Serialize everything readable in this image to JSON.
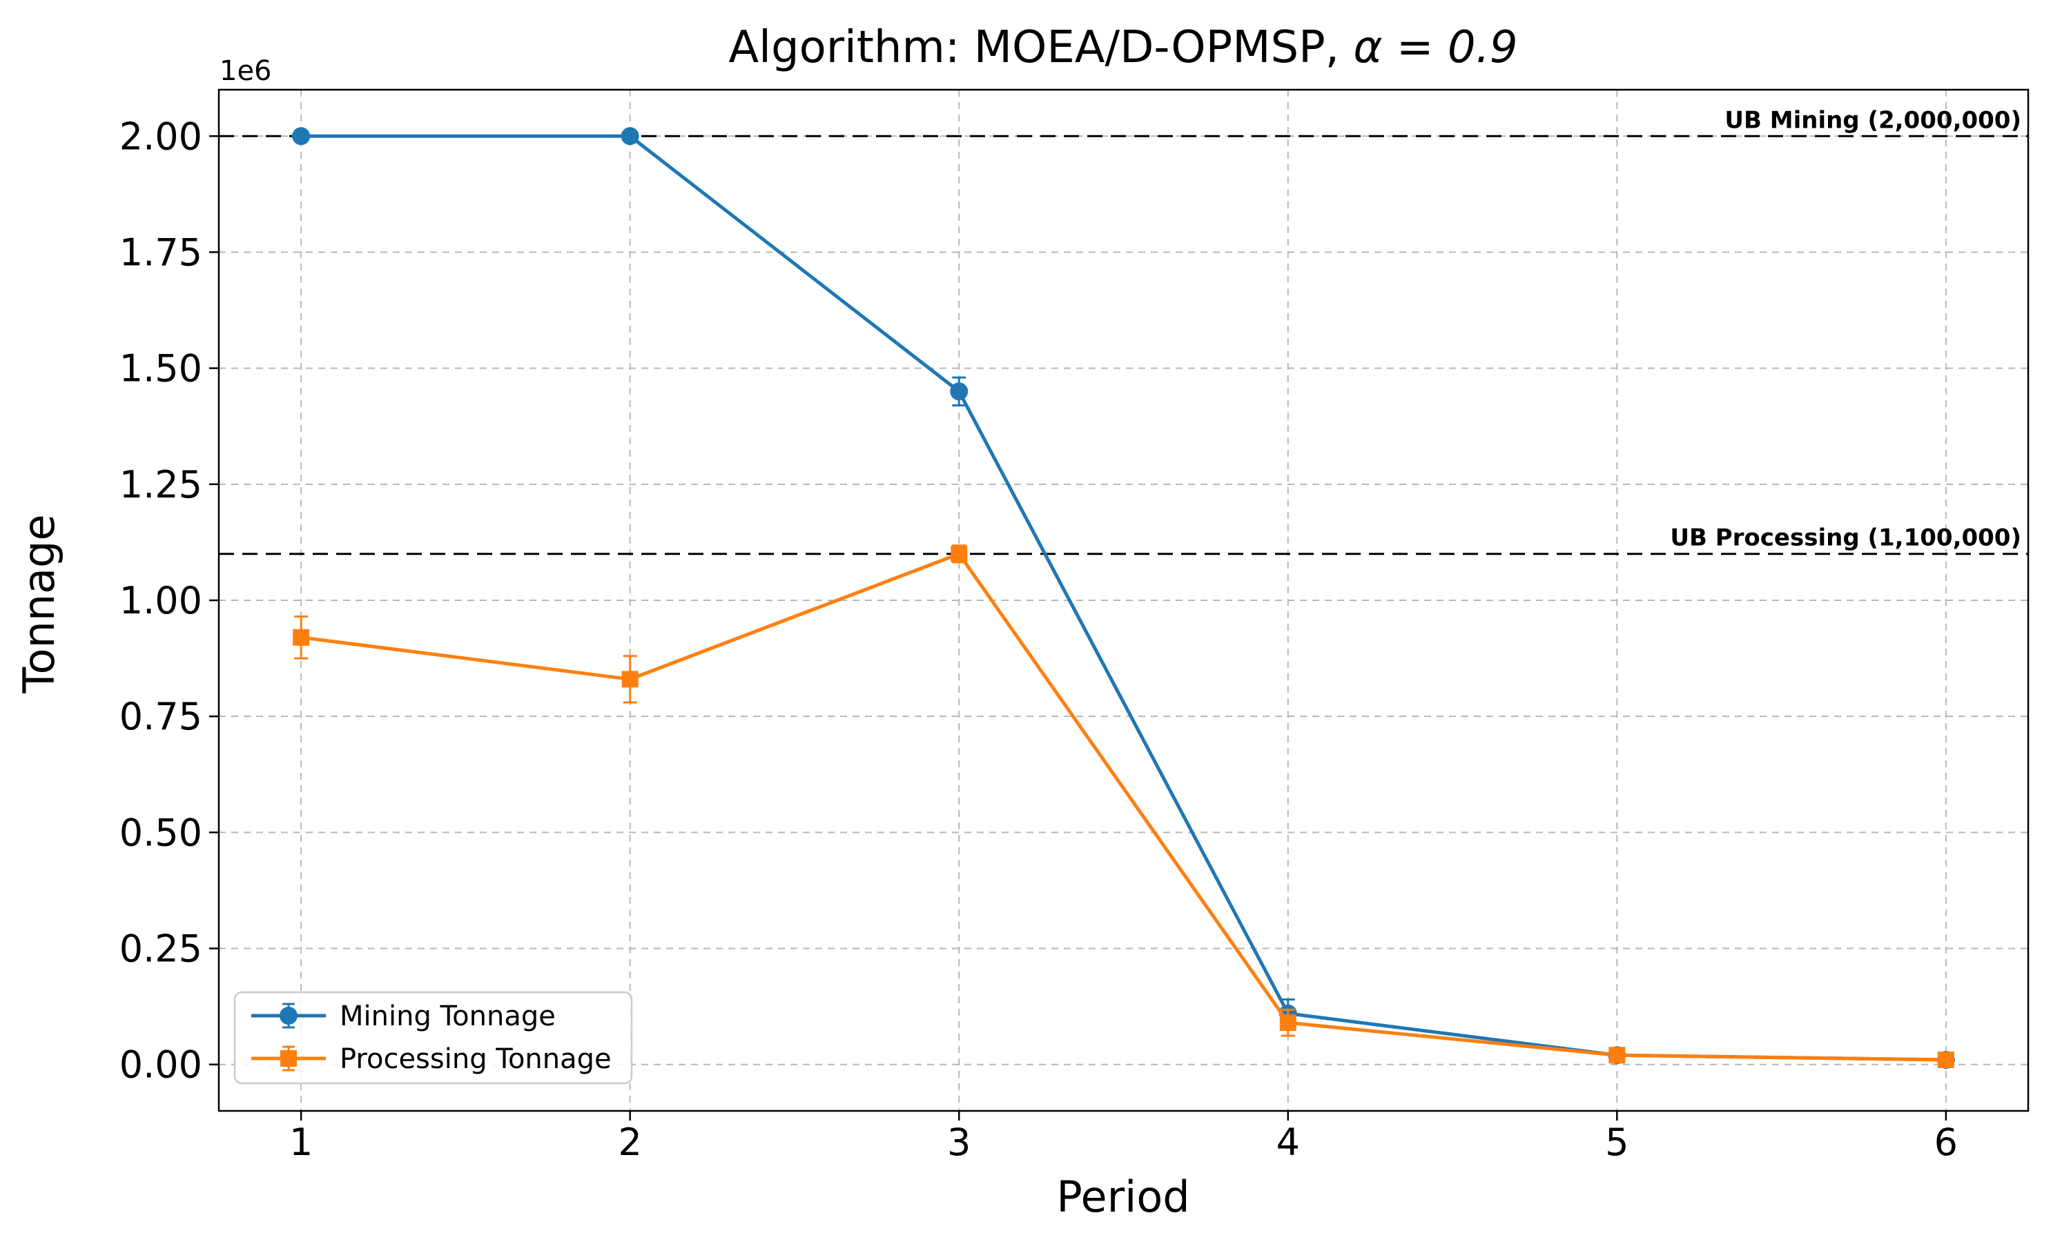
{
  "figure": {
    "background": "#ffffff",
    "axes_edge_color": "#000000",
    "grid_color": "#b0b0b0"
  },
  "chart_data": {
    "type": "line",
    "title": "Algorithm: MOEA/D-OPMSP, α = 0.9",
    "title_main": "Algorithm: MOEA/D-OPMSP, ",
    "title_alpha": "α = 0.9",
    "xlabel": "Period",
    "ylabel": "Tonnage",
    "y_offset_label": "1e6",
    "x": [
      1,
      2,
      3,
      4,
      5,
      6
    ],
    "series": [
      {
        "name": "Mining Tonnage",
        "color": "#1f77b4",
        "marker": "circle",
        "values": [
          2000000,
          2000000,
          1450000,
          110000,
          20000,
          10000
        ],
        "errors": [
          5000,
          5000,
          30000,
          30000,
          12000,
          8000
        ]
      },
      {
        "name": "Processing Tonnage",
        "color": "#ff7f0e",
        "marker": "square",
        "values": [
          920000,
          830000,
          1100000,
          90000,
          20000,
          10000
        ],
        "errors": [
          45000,
          50000,
          18000,
          28000,
          15000,
          10000
        ]
      }
    ],
    "hlines": [
      {
        "value": 2000000,
        "label": "UB Mining (2,000,000)",
        "color": "#000000",
        "style": "dashed"
      },
      {
        "value": 1100000,
        "label": "UB Processing (1,100,000)",
        "color": "#000000",
        "style": "dashed"
      }
    ],
    "xlim": [
      0.75,
      6.25
    ],
    "ylim": [
      -100000,
      2100000
    ],
    "xticks": [
      1,
      2,
      3,
      4,
      5,
      6
    ],
    "xtick_labels": [
      "1",
      "2",
      "3",
      "4",
      "5",
      "6"
    ],
    "yticks": [
      0,
      250000,
      500000,
      750000,
      1000000,
      1250000,
      1500000,
      1750000,
      2000000
    ],
    "ytick_labels": [
      "0.00",
      "0.25",
      "0.50",
      "0.75",
      "1.00",
      "1.25",
      "1.50",
      "1.75",
      "2.00"
    ],
    "grid": true,
    "grid_style": "dashed",
    "legend_position": "lower left"
  }
}
